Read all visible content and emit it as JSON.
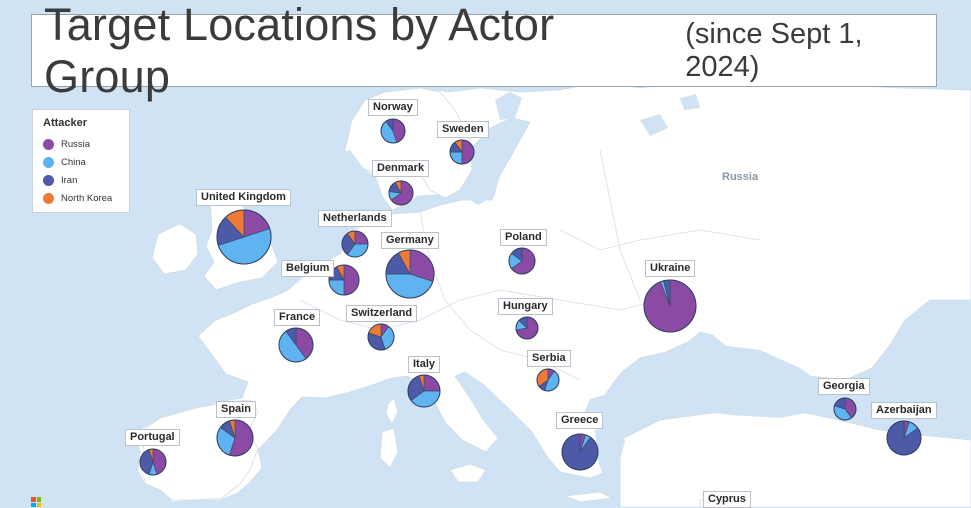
{
  "title": {
    "main": "Target Locations by Actor Group",
    "sub": "(since Sept 1, 2024)"
  },
  "legend": {
    "title": "Attacker",
    "items": [
      {
        "name": "Russia",
        "color": "#8b4aa3"
      },
      {
        "name": "China",
        "color": "#5eb3f0"
      },
      {
        "name": "Iran",
        "color": "#4c5aa8"
      },
      {
        "name": "North Korea",
        "color": "#ef7a36"
      }
    ]
  },
  "region_label": "Russia",
  "cyprus_label": "Cyprus",
  "chart_data": {
    "type": "pie",
    "series_order": [
      "Russia",
      "China",
      "Iran",
      "North Korea"
    ],
    "locations": [
      {
        "name": "Norway",
        "slices": [
          0.45,
          0.45,
          0.1,
          0.0
        ]
      },
      {
        "name": "Sweden",
        "slices": [
          0.5,
          0.25,
          0.15,
          0.1
        ]
      },
      {
        "name": "Denmark",
        "slices": [
          0.65,
          0.12,
          0.15,
          0.08
        ]
      },
      {
        "name": "United Kingdom",
        "slices": [
          0.2,
          0.5,
          0.18,
          0.12
        ]
      },
      {
        "name": "Netherlands",
        "slices": [
          0.25,
          0.35,
          0.3,
          0.1
        ]
      },
      {
        "name": "Germany",
        "slices": [
          0.3,
          0.45,
          0.17,
          0.08
        ]
      },
      {
        "name": "Belgium",
        "slices": [
          0.5,
          0.25,
          0.17,
          0.08
        ]
      },
      {
        "name": "Poland",
        "slices": [
          0.65,
          0.2,
          0.15,
          0.0
        ]
      },
      {
        "name": "Ukraine",
        "slices": [
          0.94,
          0.02,
          0.04,
          0.0
        ]
      },
      {
        "name": "Hungary",
        "slices": [
          0.72,
          0.15,
          0.13,
          0.0
        ]
      },
      {
        "name": "France",
        "slices": [
          0.4,
          0.5,
          0.1,
          0.0
        ]
      },
      {
        "name": "Switzerland",
        "slices": [
          0.1,
          0.35,
          0.35,
          0.2
        ]
      },
      {
        "name": "Serbia",
        "slices": [
          0.1,
          0.45,
          0.1,
          0.35
        ]
      },
      {
        "name": "Italy",
        "slices": [
          0.25,
          0.4,
          0.3,
          0.05
        ]
      },
      {
        "name": "Spain",
        "slices": [
          0.55,
          0.3,
          0.1,
          0.05
        ]
      },
      {
        "name": "Portugal",
        "slices": [
          0.45,
          0.1,
          0.4,
          0.05
        ]
      },
      {
        "name": "Greece",
        "slices": [
          0.05,
          0.05,
          0.9,
          0.0
        ]
      },
      {
        "name": "Georgia",
        "slices": [
          0.4,
          0.4,
          0.2,
          0.0
        ]
      },
      {
        "name": "Azerbaijan",
        "slices": [
          0.05,
          0.1,
          0.85,
          0.0
        ]
      }
    ]
  }
}
